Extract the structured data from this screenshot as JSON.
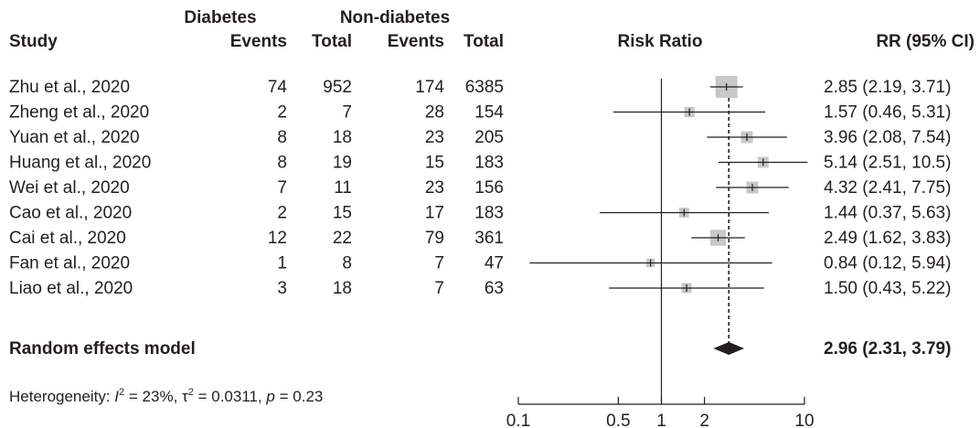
{
  "chart_data": {
    "type": "forest",
    "scale": "log",
    "xlim": [
      0.1,
      10
    ],
    "null_value": 1,
    "x_ticks": [
      "0.1",
      "0.5",
      "1",
      "2",
      "10"
    ],
    "axis_title": "Risk Ratio",
    "header": {
      "group1": "Diabetes",
      "group2": "Non-diabetes",
      "study": "Study",
      "events": "Events",
      "total": "Total",
      "effect": "RR (95% CI)"
    },
    "studies": [
      {
        "name": "Zhu et al., 2020",
        "e1": "74",
        "n1": "952",
        "e2": "174",
        "n2": "6385",
        "rr": 2.85,
        "lo": 2.19,
        "hi": 3.71,
        "label": "2.85 (2.19, 3.71)",
        "weight": 1.0
      },
      {
        "name": "Zheng et al., 2020",
        "e1": "2",
        "n1": "7",
        "e2": "28",
        "n2": "154",
        "rr": 1.57,
        "lo": 0.46,
        "hi": 5.31,
        "label": "1.57 (0.46, 5.31)",
        "weight": 0.13
      },
      {
        "name": "Yuan et al., 2020",
        "e1": "8",
        "n1": "18",
        "e2": "23",
        "n2": "205",
        "rr": 3.96,
        "lo": 2.08,
        "hi": 7.54,
        "label": "3.96 (2.08, 7.54)",
        "weight": 0.2
      },
      {
        "name": "Huang et al., 2020",
        "e1": "8",
        "n1": "19",
        "e2": "15",
        "n2": "183",
        "rr": 5.14,
        "lo": 2.51,
        "hi": 10.5,
        "label": "5.14 (2.51, 10.5)",
        "weight": 0.16
      },
      {
        "name": "Wei et al., 2020",
        "e1": "7",
        "n1": "11",
        "e2": "23",
        "n2": "156",
        "rr": 4.32,
        "lo": 2.41,
        "hi": 7.75,
        "label": "4.32 (2.41, 7.75)",
        "weight": 0.2
      },
      {
        "name": "Cao et al., 2020",
        "e1": "2",
        "n1": "15",
        "e2": "17",
        "n2": "183",
        "rr": 1.44,
        "lo": 0.37,
        "hi": 5.63,
        "label": "1.44 (0.37, 5.63)",
        "weight": 0.12
      },
      {
        "name": "Cai et al., 2020",
        "e1": "12",
        "n1": "22",
        "e2": "79",
        "n2": "361",
        "rr": 2.49,
        "lo": 1.62,
        "hi": 3.83,
        "label": "2.49 (1.62, 3.83)",
        "weight": 0.45
      },
      {
        "name": "Fan et al., 2020",
        "e1": "1",
        "n1": "8",
        "e2": "7",
        "n2": "47",
        "rr": 0.84,
        "lo": 0.12,
        "hi": 5.94,
        "label": "0.84 (0.12, 5.94)",
        "weight": 0.07
      },
      {
        "name": "Liao et al., 2020",
        "e1": "3",
        "n1": "18",
        "e2": "7",
        "n2": "63",
        "rr": 1.5,
        "lo": 0.43,
        "hi": 5.22,
        "label": "1.50 (0.43, 5.22)",
        "weight": 0.12
      }
    ],
    "pooled": {
      "name": "Random effects model",
      "rr": 2.96,
      "lo": 2.31,
      "hi": 3.79,
      "label": "2.96 (2.31, 3.79)"
    },
    "heterogeneity": {
      "prefix": "Heterogeneity: ",
      "i2": "23%",
      "tau2": "0.0311",
      "p": "0.23"
    },
    "colors": {
      "text": "#231f20",
      "box": "#c8c8c8",
      "line": "#231f20"
    }
  }
}
